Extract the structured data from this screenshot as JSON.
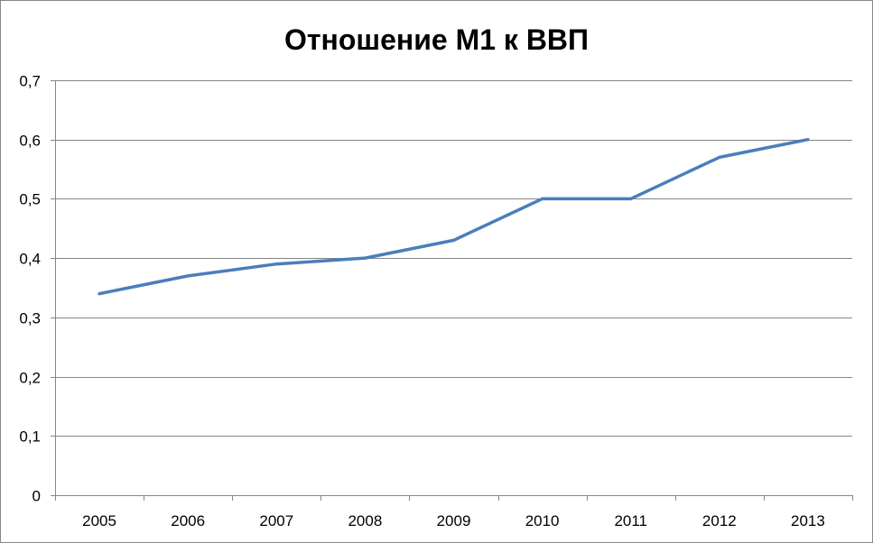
{
  "chart_data": {
    "type": "line",
    "title": "Отношение М1 к ВВП",
    "xlabel": "",
    "ylabel": "",
    "categories": [
      "2005",
      "2006",
      "2007",
      "2008",
      "2009",
      "2010",
      "2011",
      "2012",
      "2013"
    ],
    "series": [
      {
        "values": [
          0.34,
          0.37,
          0.39,
          0.4,
          0.43,
          0.5,
          0.5,
          0.57,
          0.6
        ],
        "color": "#4A7EBB"
      }
    ],
    "ylim": [
      0,
      0.7
    ],
    "y_ticks": [
      0,
      0.1,
      0.2,
      0.3,
      0.4,
      0.5,
      0.6,
      0.7
    ],
    "y_tick_labels": [
      "0",
      "0,1",
      "0,2",
      "0,3",
      "0,4",
      "0,5",
      "0,6",
      "0,7"
    ],
    "grid": "horizontal",
    "legend": "none",
    "colors": {
      "line": "#4A7EBB",
      "grid": "#868686",
      "axis": "#868686"
    }
  }
}
